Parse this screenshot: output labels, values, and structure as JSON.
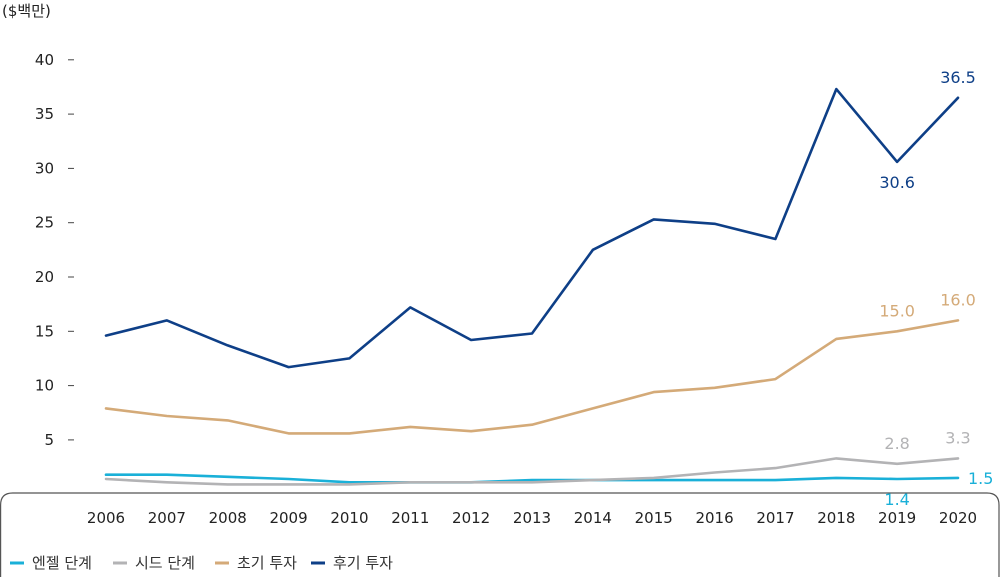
{
  "chart_data": {
    "type": "line",
    "unit_label": "($백만)",
    "x": [
      "2006",
      "2007",
      "2008",
      "2009",
      "2010",
      "2011",
      "2012",
      "2013",
      "2014",
      "2015",
      "2016",
      "2017",
      "2018",
      "2019",
      "2020"
    ],
    "ylim": [
      0,
      40
    ],
    "yticks": [
      "5",
      "10",
      "15",
      "20",
      "25",
      "30",
      "35",
      "40"
    ],
    "grid": false,
    "legend_position": "bottom-left",
    "series": [
      {
        "name": "엔젤 단계",
        "color": "#1ab0d8",
        "values": [
          1.8,
          1.8,
          1.6,
          1.4,
          1.1,
          1.1,
          1.1,
          1.3,
          1.3,
          1.3,
          1.3,
          1.3,
          1.5,
          1.4,
          1.5
        ],
        "labels": [
          {
            "index": 13,
            "text": "1.4",
            "pos": "below"
          },
          {
            "index": 14,
            "text": "1.5",
            "pos": "right"
          }
        ]
      },
      {
        "name": "시드 단계",
        "color": "#b3b3b5",
        "values": [
          1.4,
          1.1,
          0.9,
          0.9,
          0.9,
          1.1,
          1.1,
          1.1,
          1.3,
          1.5,
          2.0,
          2.4,
          3.3,
          2.8,
          3.3
        ],
        "labels": [
          {
            "index": 13,
            "text": "2.8",
            "pos": "above"
          },
          {
            "index": 14,
            "text": "3.3",
            "pos": "above"
          }
        ]
      },
      {
        "name": "초기 투자",
        "color": "#d4aa78",
        "values": [
          7.9,
          7.2,
          6.8,
          5.6,
          5.6,
          6.2,
          5.8,
          6.4,
          7.9,
          9.4,
          9.8,
          10.6,
          14.3,
          15.0,
          16.0
        ],
        "labels": [
          {
            "index": 13,
            "text": "15.0",
            "pos": "above"
          },
          {
            "index": 14,
            "text": "16.0",
            "pos": "above"
          }
        ]
      },
      {
        "name": "후기 투자",
        "color": "#0e3f87",
        "values": [
          14.6,
          16.0,
          13.7,
          11.7,
          12.5,
          17.2,
          14.2,
          14.8,
          22.5,
          25.3,
          24.9,
          23.5,
          37.3,
          30.6,
          36.5
        ],
        "labels": [
          {
            "index": 13,
            "text": "30.6",
            "pos": "below"
          },
          {
            "index": 14,
            "text": "36.5",
            "pos": "above"
          }
        ]
      }
    ]
  }
}
